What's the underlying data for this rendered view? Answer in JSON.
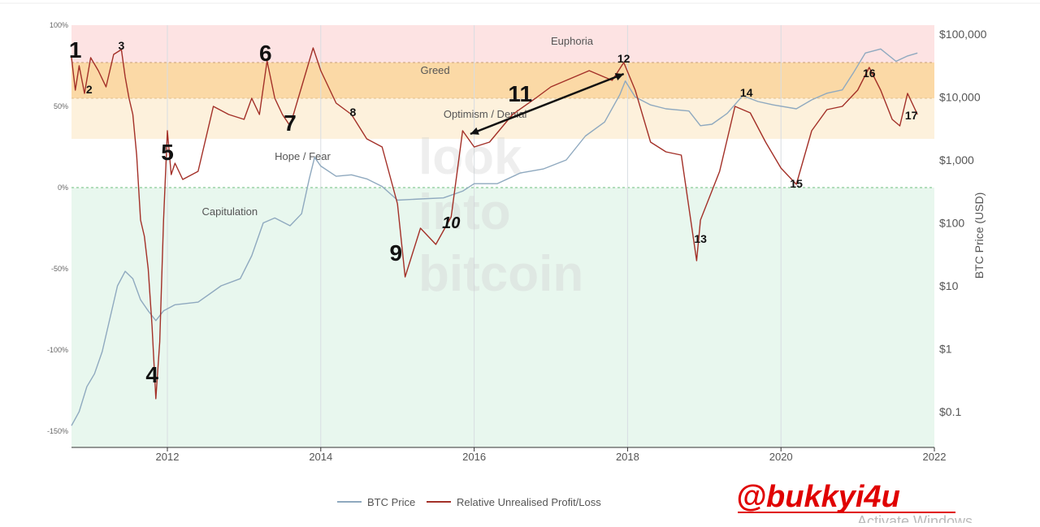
{
  "chart_data": {
    "type": "line",
    "y2label": "BTC Price (USD)",
    "x_ticks": [
      "2012",
      "2014",
      "2016",
      "2018",
      "2020",
      "2022"
    ],
    "x_tick_years": [
      2012,
      2014,
      2016,
      2018,
      2020,
      2022
    ],
    "xlim": [
      2010.75,
      2022.0
    ],
    "y_left_ticks": [
      "100%",
      "50%",
      "0%",
      "-50%",
      "-100%",
      "-150%"
    ],
    "y_left_tick_values": [
      1.0,
      0.5,
      0.0,
      -0.5,
      -1.0,
      -1.5
    ],
    "ylim": [
      -1.6,
      1.0
    ],
    "y_right_ticks": [
      "$100,000",
      "$10,000",
      "$1,000",
      "$100",
      "$10",
      "$1",
      "$0.1"
    ],
    "y_right_tick_values": [
      100000,
      10000,
      1000,
      100,
      10,
      1,
      0.1
    ],
    "y2_scale": "log",
    "grid": true,
    "legend_position": "bottom",
    "zones": [
      {
        "label": "Euphoria",
        "from": 0.77,
        "to": 1.0,
        "color": "#fde3e3"
      },
      {
        "label": "Greed",
        "from": 0.55,
        "to": 0.77,
        "color": "#fbd9a6"
      },
      {
        "label": "Optimism / Denial",
        "from": 0.3,
        "to": 0.55,
        "color": "#fdf1dc"
      },
      {
        "label": "Hope / Fear",
        "from": 0.0,
        "to": 0.3,
        "color": "#ffffff"
      },
      {
        "label": "Capitulation",
        "from": -1.6,
        "to": 0.0,
        "color": "#e8f7ee"
      }
    ],
    "series": [
      {
        "name": "BTC Price",
        "color": "#8fa9bf",
        "axis": "right",
        "x": [
          2010.75,
          2010.85,
          2010.95,
          2011.05,
          2011.15,
          2011.25,
          2011.35,
          2011.45,
          2011.55,
          2011.65,
          2011.75,
          2011.85,
          2011.95,
          2012.1,
          2012.4,
          2012.7,
          2012.95,
          2013.1,
          2013.25,
          2013.4,
          2013.6,
          2013.75,
          2013.85,
          2013.92,
          2014.0,
          2014.2,
          2014.4,
          2014.6,
          2014.8,
          2015.0,
          2015.3,
          2015.6,
          2015.85,
          2016.0,
          2016.3,
          2016.6,
          2016.9,
          2017.2,
          2017.45,
          2017.7,
          2017.9,
          2017.97,
          2018.1,
          2018.3,
          2018.5,
          2018.8,
          2018.95,
          2019.1,
          2019.3,
          2019.5,
          2019.7,
          2019.9,
          2020.2,
          2020.4,
          2020.6,
          2020.8,
          2020.95,
          2021.1,
          2021.3,
          2021.5,
          2021.65,
          2021.78
        ],
        "values": [
          0.06,
          0.1,
          0.25,
          0.4,
          0.9,
          3.0,
          10,
          17,
          13,
          6,
          4,
          2.8,
          4,
          5,
          5.5,
          10,
          13,
          30,
          100,
          120,
          90,
          140,
          500,
          1100,
          800,
          550,
          580,
          500,
          380,
          230,
          240,
          250,
          320,
          420,
          420,
          620,
          720,
          1000,
          2400,
          4000,
          11000,
          18000,
          10000,
          7500,
          6500,
          6000,
          3500,
          3700,
          5500,
          10500,
          8500,
          7500,
          6500,
          9000,
          11500,
          13000,
          25000,
          50000,
          58000,
          37000,
          45000,
          50000
        ]
      },
      {
        "name": "Relative Unrealised Profit/Loss",
        "color": "#a33028",
        "axis": "left",
        "x": [
          2010.75,
          2010.8,
          2010.85,
          2010.92,
          2011.0,
          2011.1,
          2011.2,
          2011.3,
          2011.4,
          2011.45,
          2011.5,
          2011.55,
          2011.6,
          2011.65,
          2011.7,
          2011.75,
          2011.8,
          2011.85,
          2011.9,
          2011.95,
          2012.0,
          2012.05,
          2012.1,
          2012.2,
          2012.4,
          2012.6,
          2012.8,
          2013.0,
          2013.1,
          2013.2,
          2013.3,
          2013.4,
          2013.5,
          2013.6,
          2013.75,
          2013.9,
          2014.0,
          2014.2,
          2014.4,
          2014.6,
          2014.8,
          2015.0,
          2015.1,
          2015.3,
          2015.5,
          2015.7,
          2015.85,
          2016.0,
          2016.2,
          2016.5,
          2016.8,
          2017.0,
          2017.3,
          2017.5,
          2017.8,
          2017.95,
          2018.1,
          2018.3,
          2018.5,
          2018.7,
          2018.9,
          2018.95,
          2019.2,
          2019.4,
          2019.6,
          2019.8,
          2020.0,
          2020.2,
          2020.4,
          2020.6,
          2020.8,
          2021.0,
          2021.15,
          2021.3,
          2021.45,
          2021.55,
          2021.65,
          2021.78
        ],
        "values": [
          0.8,
          0.6,
          0.75,
          0.58,
          0.8,
          0.72,
          0.62,
          0.82,
          0.85,
          0.68,
          0.55,
          0.45,
          0.2,
          -0.2,
          -0.3,
          -0.5,
          -0.85,
          -1.3,
          -0.95,
          -0.2,
          0.35,
          0.08,
          0.15,
          0.05,
          0.1,
          0.5,
          0.45,
          0.42,
          0.55,
          0.45,
          0.78,
          0.55,
          0.45,
          0.38,
          0.62,
          0.86,
          0.72,
          0.52,
          0.45,
          0.3,
          0.25,
          -0.1,
          -0.55,
          -0.25,
          -0.35,
          -0.18,
          0.35,
          0.25,
          0.28,
          0.45,
          0.55,
          0.62,
          0.68,
          0.72,
          0.66,
          0.77,
          0.6,
          0.28,
          0.22,
          0.2,
          -0.45,
          -0.2,
          0.1,
          0.5,
          0.46,
          0.28,
          0.12,
          0.02,
          0.35,
          0.48,
          0.5,
          0.6,
          0.74,
          0.6,
          0.42,
          0.38,
          0.58,
          0.45
        ]
      }
    ],
    "annotations": [
      {
        "text": "1",
        "x": 2010.8,
        "y": 0.8,
        "size": "big"
      },
      {
        "text": "2",
        "x": 2010.98,
        "y": 0.58,
        "size": "small"
      },
      {
        "text": "3",
        "x": 2011.4,
        "y": 0.85,
        "size": "small"
      },
      {
        "text": "4",
        "x": 2011.8,
        "y": -1.2,
        "size": "big"
      },
      {
        "text": "5",
        "x": 2012.0,
        "y": 0.17,
        "size": "big"
      },
      {
        "text": "6",
        "x": 2013.28,
        "y": 0.78,
        "size": "big"
      },
      {
        "text": "7",
        "x": 2013.6,
        "y": 0.35,
        "size": "big"
      },
      {
        "text": "8",
        "x": 2014.42,
        "y": 0.44,
        "size": "small"
      },
      {
        "text": "9",
        "x": 2014.98,
        "y": -0.45,
        "size": "big"
      },
      {
        "text": "10",
        "x": 2015.7,
        "y": -0.25,
        "size": "mid"
      },
      {
        "text": "11",
        "x": 2016.6,
        "y": 0.53,
        "size": "big"
      },
      {
        "text": "12",
        "x": 2017.95,
        "y": 0.77,
        "size": "small"
      },
      {
        "text": "13",
        "x": 2018.95,
        "y": -0.34,
        "size": "small"
      },
      {
        "text": "14",
        "x": 2019.55,
        "y": 0.56,
        "size": "small"
      },
      {
        "text": "15",
        "x": 2020.2,
        "y": 0.0,
        "size": "small"
      },
      {
        "text": "16",
        "x": 2021.15,
        "y": 0.68,
        "size": "small"
      },
      {
        "text": "17",
        "x": 2021.7,
        "y": 0.42,
        "size": "small"
      }
    ],
    "arrow": {
      "from": [
        2015.95,
        0.33
      ],
      "to": [
        2017.95,
        0.7
      ]
    }
  },
  "watermark": {
    "line1": "look",
    "line2": "into",
    "line3": "bitcoin"
  },
  "handle": "@bukkyi4u",
  "overlay_text": "Activate Windows"
}
